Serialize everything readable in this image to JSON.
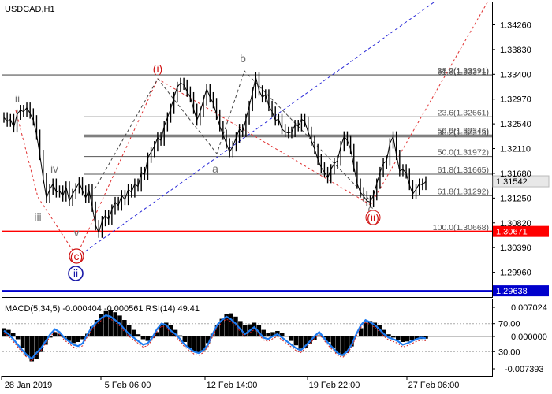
{
  "chart_data": [
    {
      "type": "candlestick",
      "title": "USDCAD,H1",
      "x_tick_labels": [
        "28 Jan 2019",
        "5 Feb 06:00",
        "12 Feb 14:00",
        "19 Feb 22:00",
        "27 Feb 06:00"
      ],
      "y_tick_labels": [
        "1.34260",
        "1.33830",
        "1.33400",
        "1.32970",
        "1.32540",
        "1.32110",
        "1.31680",
        "1.31250",
        "1.30820",
        "1.30390",
        "1.29960"
      ],
      "ylim": [
        1.2953,
        1.3465
      ],
      "price_series": [
        1.3265,
        1.3258,
        1.3262,
        1.3248,
        1.327,
        1.3278,
        1.3275,
        1.3282,
        1.3272,
        1.326,
        1.3235,
        1.32,
        1.316,
        1.3125,
        1.314,
        1.315,
        1.3135,
        1.3138,
        1.3128,
        1.3145,
        1.312,
        1.3132,
        1.3142,
        1.3152,
        1.3138,
        1.3125,
        1.314,
        1.311,
        1.3078,
        1.3065,
        1.3085,
        1.3095,
        1.3088,
        1.3105,
        1.3118,
        1.3112,
        1.313,
        1.3122,
        1.314,
        1.3135,
        1.315,
        1.3145,
        1.317,
        1.3165,
        1.3195,
        1.3205,
        1.3215,
        1.323,
        1.3225,
        1.325,
        1.3265,
        1.328,
        1.33,
        1.3318,
        1.3325,
        1.3322,
        1.331,
        1.33,
        1.328,
        1.326,
        1.3275,
        1.3295,
        1.3315,
        1.33,
        1.329,
        1.327,
        1.325,
        1.3235,
        1.322,
        1.3205,
        1.3215,
        1.323,
        1.3245,
        1.324,
        1.3262,
        1.3285,
        1.3308,
        1.3335,
        1.3312,
        1.33,
        1.3305,
        1.3285,
        1.3275,
        1.326,
        1.3262,
        1.3245,
        1.324,
        1.3238,
        1.324,
        1.3252,
        1.325,
        1.3262,
        1.3258,
        1.324,
        1.3225,
        1.321,
        1.3192,
        1.3178,
        1.317,
        1.316,
        1.3175,
        1.3185,
        1.319,
        1.3215,
        1.3232,
        1.3225,
        1.321,
        1.318,
        1.315,
        1.3135,
        1.3128,
        1.312,
        1.3118,
        1.313,
        1.315,
        1.317,
        1.3185,
        1.319,
        1.322,
        1.3232,
        1.32,
        1.3172,
        1.3175,
        1.3168,
        1.3148,
        1.3132,
        1.314,
        1.315,
        1.3148,
        1.3154
      ],
      "current_price": "1.31542",
      "price_lines": [
        {
          "label": "1.30671",
          "value": 1.30671,
          "color": "#ff0000"
        },
        {
          "label": "1.29638",
          "value": 1.29638,
          "color": "#0000cc"
        }
      ],
      "fibonacci_levels": [
        {
          "label": "38.2(1.33391)",
          "value": 1.33391
        },
        {
          "label": "61.8(1.33371)",
          "value": 1.33371
        },
        {
          "label": "23.6(1.32661)",
          "value": 1.32661
        },
        {
          "label": "50.0(1.32346)",
          "value": 1.32346
        },
        {
          "label": "38.2(1.32313)",
          "value": 1.32313
        },
        {
          "label": "50.0(1.31972)",
          "value": 1.31972
        },
        {
          "label": "61.8(1.31665)",
          "value": 1.31665
        },
        {
          "label": "61.8(1.31292)",
          "value": 1.31292
        },
        {
          "label": "100.0(1.30668)",
          "value": 1.30668
        }
      ],
      "wave_labels": [
        {
          "text": "ii",
          "color": "#707070"
        },
        {
          "text": "iii",
          "color": "#707070"
        },
        {
          "text": "iv",
          "color": "#707070"
        },
        {
          "text": "v",
          "color": "#707070"
        },
        {
          "text": "(c)",
          "color": "#d01010"
        },
        {
          "text": "(i)",
          "color": "#d01010"
        },
        {
          "text": "b",
          "color": "#707070"
        },
        {
          "text": "a",
          "color": "#707070"
        },
        {
          "text": "c",
          "color": "#707070"
        },
        {
          "text": "(ii)",
          "color": "#d01010"
        },
        {
          "text": "ii",
          "color": "#1a1aa8"
        }
      ]
    },
    {
      "type": "line",
      "title": "MACD(5,34,5) -0.000404 -0.000561 RSI(14) 49.41",
      "left_y_tick_labels": [
        "70.00",
        "30.00"
      ],
      "right_y_tick_labels": [
        "0.007024",
        "0.000000",
        "-0.007393"
      ],
      "rsi_series": [
        60,
        55,
        48,
        40,
        32,
        25,
        20,
        28,
        35,
        45,
        55,
        62,
        58,
        50,
        45,
        40,
        38,
        42,
        55,
        65,
        72,
        78,
        82,
        80,
        75,
        70,
        62,
        55,
        50,
        45,
        40,
        42,
        50,
        62,
        70,
        68,
        60,
        55,
        48,
        40,
        35,
        30,
        28,
        32,
        40,
        55,
        68,
        75,
        80,
        76,
        70,
        62,
        55,
        60,
        65,
        58,
        50,
        48,
        52,
        55,
        50,
        45,
        40,
        35,
        32,
        38,
        45,
        52,
        58,
        50,
        42,
        35,
        28,
        25,
        30,
        40,
        55,
        68,
        75,
        72,
        68,
        62,
        55,
        50,
        48,
        45,
        40,
        42,
        45,
        48,
        50,
        49
      ],
      "macd_histogram": [
        1.5,
        1.2,
        0.6,
        -0.5,
        -2.0,
        -3.5,
        -4.5,
        -4.0,
        -2.8,
        -1.5,
        -0.2,
        0.8,
        0.5,
        -0.2,
        -0.8,
        -1.2,
        -1.0,
        -0.5,
        0.5,
        1.8,
        3.0,
        4.0,
        4.6,
        4.8,
        4.4,
        3.8,
        3.0,
        2.0,
        1.2,
        0.4,
        -0.5,
        -0.8,
        -0.3,
        0.8,
        2.0,
        2.5,
        2.0,
        1.2,
        0.2,
        -1.0,
        -2.0,
        -2.8,
        -3.0,
        -2.5,
        -1.2,
        0.5,
        2.0,
        3.2,
        4.0,
        4.2,
        3.6,
        2.8,
        2.0,
        2.2,
        2.5,
        2.0,
        1.2,
        0.6,
        0.8,
        1.0,
        0.6,
        0.0,
        -0.8,
        -1.6,
        -2.2,
        -2.0,
        -1.4,
        -0.6,
        0.2,
        -0.2,
        -1.0,
        -2.0,
        -3.0,
        -3.5,
        -3.0,
        -1.8,
        0.0,
        1.5,
        2.5,
        2.8,
        2.5,
        2.0,
        1.2,
        0.4,
        -0.2,
        -0.6,
        -1.0,
        -0.9,
        -0.7,
        -0.5,
        -0.45,
        -0.4
      ]
    }
  ]
}
